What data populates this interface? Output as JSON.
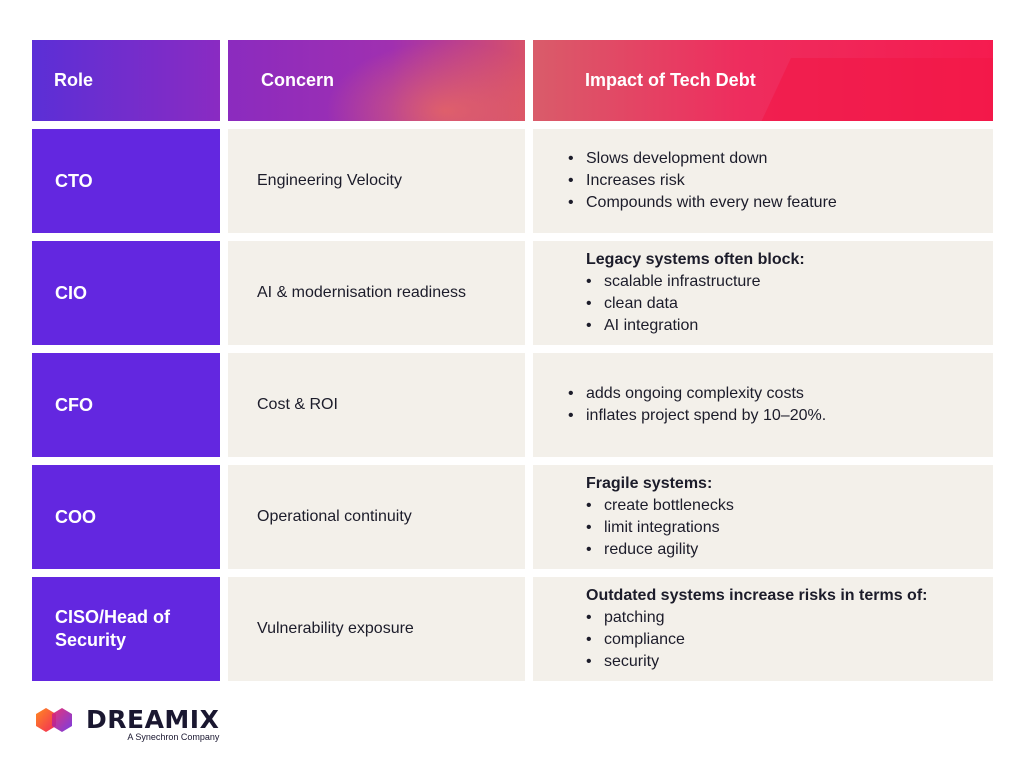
{
  "headers": {
    "role": "Role",
    "concern": "Concern",
    "impact": "Impact of Tech Debt"
  },
  "rows": [
    {
      "role": "CTO",
      "concern": "Engineering Velocity",
      "lead": "",
      "bullets": [
        "Slows development down",
        "Increases risk",
        "Compounds with every new feature"
      ]
    },
    {
      "role": "CIO",
      "concern": "AI & modernisation readiness",
      "lead": "Legacy systems often block:",
      "bullets": [
        "scalable infrastructure",
        "clean data",
        "AI integration"
      ]
    },
    {
      "role": "CFO",
      "concern": "Cost & ROI",
      "lead": "",
      "bullets": [
        "adds ongoing complexity costs",
        "inflates project spend by 10–20%."
      ]
    },
    {
      "role": "COO",
      "concern": "Operational continuity",
      "lead": "Fragile systems:",
      "bullets": [
        "create bottlenecks",
        "limit integrations",
        "reduce agility"
      ]
    },
    {
      "role": "CISO/Head of Security",
      "concern": "Vulnerability exposure",
      "lead": "Outdated systems increase risks in terms of:",
      "bullets": [
        "patching",
        "compliance",
        "security"
      ]
    }
  ],
  "logo": {
    "wordmark": "DREAMIX",
    "tagline": "A Synechron Company",
    "icon": "dreamix-hexagon-logo-icon"
  },
  "colors": {
    "role_purple": "#6327e0",
    "cell_beige": "#f3f0ea",
    "accent_red": "#f51b4f"
  }
}
